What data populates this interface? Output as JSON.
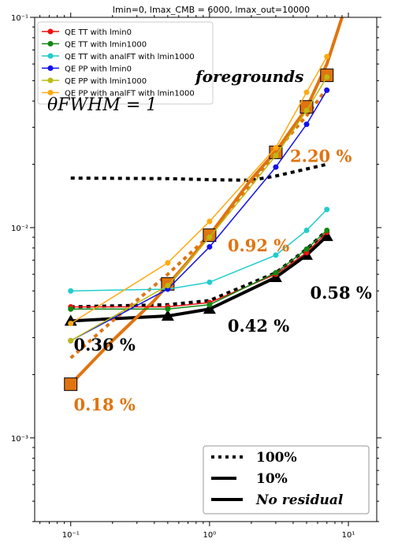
{
  "chart_data": {
    "type": "line",
    "title": "lmin=0, lmax_CMB = 6000, lmax_out=10000",
    "xlabel": "",
    "ylabel": "",
    "x_scale": "log",
    "y_scale": "log",
    "xlim": [
      0.055,
      16
    ],
    "ylim": [
      0.0004,
      0.1
    ],
    "x_ticks": [
      {
        "value": 0.1,
        "label": "10⁻¹"
      },
      {
        "value": 1,
        "label": "10⁰"
      },
      {
        "value": 10,
        "label": "10¹"
      }
    ],
    "y_ticks": [
      {
        "value": 0.001,
        "label": "10⁻³"
      },
      {
        "value": 0.01,
        "label": "10⁻²"
      },
      {
        "value": 0.1,
        "label": "10⁻¹"
      }
    ],
    "grid": false,
    "legend_upper": {
      "placement": "top-left",
      "entries": [
        {
          "label": "QE TT with lmin0",
          "color": "#ee1111"
        },
        {
          "label": "QE TT with lmin1000",
          "color": "#118811"
        },
        {
          "label": "QE TT with analFT with lmin1000",
          "color": "#22cccc"
        },
        {
          "label": "QE PP with lmin0",
          "color": "#1111ee"
        },
        {
          "label": "QE PP with lmin1000",
          "color": "#bbbb11"
        },
        {
          "label": "QE PP with analFT with lmin1000",
          "color": "#ffaa11"
        }
      ]
    },
    "legend_lower": {
      "placement": "bottom-right",
      "entries": [
        {
          "label": "100%",
          "style": "dotted"
        },
        {
          "label": "10%",
          "style": "dashed"
        },
        {
          "label": "No residual",
          "style": "solid",
          "italic": true
        }
      ]
    },
    "overlay_text": [
      {
        "text": "foregrounds",
        "color": "#8b1010"
      },
      {
        "text": "θFWHM = 1",
        "color": "#8b1010"
      }
    ],
    "series": [
      {
        "name": "QE TT with lmin0",
        "color": "#ee1111",
        "marker": "circle",
        "x": [
          0.1,
          0.5,
          1,
          3,
          5,
          7
        ],
        "y": [
          0.0042,
          0.0042,
          0.0044,
          0.006,
          0.0076,
          0.0095
        ]
      },
      {
        "name": "QE TT with lmin1000",
        "color": "#118811",
        "marker": "circle",
        "x": [
          0.1,
          0.5,
          1,
          3,
          5,
          7
        ],
        "y": [
          0.0041,
          0.0041,
          0.0043,
          0.0061,
          0.0079,
          0.0097
        ]
      },
      {
        "name": "QE TT with analFT with lmin1000",
        "color": "#22cccc",
        "marker": "circle",
        "x": [
          0.1,
          0.5,
          1,
          3,
          5,
          7
        ],
        "y": [
          0.005,
          0.0051,
          0.0055,
          0.0074,
          0.0097,
          0.0122
        ]
      },
      {
        "name": "QE PP with lmin0",
        "color": "#1111ee",
        "marker": "circle",
        "x": [
          0.1,
          0.5,
          1,
          3,
          5,
          7
        ],
        "y": [
          0.0029,
          0.0051,
          0.0081,
          0.0194,
          0.031,
          0.045
        ]
      },
      {
        "name": "QE PP with lmin1000",
        "color": "#bbbb11",
        "marker": "circle",
        "x": [
          0.1,
          0.5,
          1,
          3,
          5,
          7
        ],
        "y": [
          0.0029,
          0.0053,
          0.009,
          0.022,
          0.036,
          0.052
        ]
      },
      {
        "name": "QE PP with analFT with lmin1000",
        "color": "#ffaa11",
        "marker": "circle",
        "x": [
          0.1,
          0.5,
          1,
          3,
          5,
          7
        ],
        "y": [
          0.0035,
          0.0068,
          0.0107,
          0.024,
          0.044,
          0.065
        ]
      }
    ],
    "extra_lines": [
      {
        "color": "#000000",
        "style": "dotted",
        "width": 4,
        "x": [
          0.1,
          0.5,
          1,
          3,
          5,
          7
        ],
        "y": [
          0.0042,
          0.0043,
          0.0045,
          0.0061,
          0.0079,
          0.0097
        ]
      },
      {
        "color": "#000000",
        "style": "solid",
        "width": 4,
        "marker": "triangle",
        "x": [
          0.1,
          0.5,
          1,
          3,
          5,
          7
        ],
        "y": [
          0.0036,
          0.0038,
          0.0041,
          0.0058,
          0.0074,
          0.0091
        ]
      },
      {
        "color": "#000000",
        "style": "dotted",
        "width": 4,
        "x": [
          0.1,
          0.5,
          1,
          2,
          3,
          5,
          7
        ],
        "y": [
          0.0172,
          0.0171,
          0.0169,
          0.0168,
          0.0176,
          0.019,
          0.02
        ]
      },
      {
        "color": "#e07410",
        "style": "dotted",
        "width": 4,
        "x": [
          0.1,
          0.2,
          0.5,
          1,
          2,
          3,
          5,
          7
        ],
        "y": [
          0.0024,
          0.0036,
          0.006,
          0.0092,
          0.016,
          0.023,
          0.034,
          0.046
        ]
      },
      {
        "color": "#e07410",
        "style": "solid",
        "width": 4,
        "x": [
          0.1,
          0.2,
          0.4,
          0.7,
          1,
          2,
          3,
          5,
          7,
          9
        ],
        "y": [
          0.0018,
          0.0029,
          0.0045,
          0.0069,
          0.0092,
          0.017,
          0.023,
          0.037,
          0.06,
          0.1
        ]
      },
      {
        "color": "#e07410",
        "style": "none",
        "marker": "square",
        "x": [
          0.1,
          0.5,
          1,
          3,
          5,
          7
        ],
        "y": [
          0.0018,
          0.0054,
          0.0092,
          0.0228,
          0.0375,
          0.053
        ]
      }
    ],
    "annotations": [
      {
        "text": "2.20 %",
        "color": "#e07410",
        "x": 3.8,
        "y": 0.0205
      },
      {
        "text": "0.92 %",
        "color": "#e07410",
        "x": 1.35,
        "y": 0.0077
      },
      {
        "text": "0.58 %",
        "color": "#000000",
        "x": 5.3,
        "y": 0.0046
      },
      {
        "text": "0.42 %",
        "color": "#000000",
        "x": 1.35,
        "y": 0.0032
      },
      {
        "text": "0.36 %",
        "color": "#000000",
        "x": 0.105,
        "y": 0.0026
      },
      {
        "text": "0.18 %",
        "color": "#e07410",
        "x": 0.105,
        "y": 0.00135
      }
    ]
  }
}
